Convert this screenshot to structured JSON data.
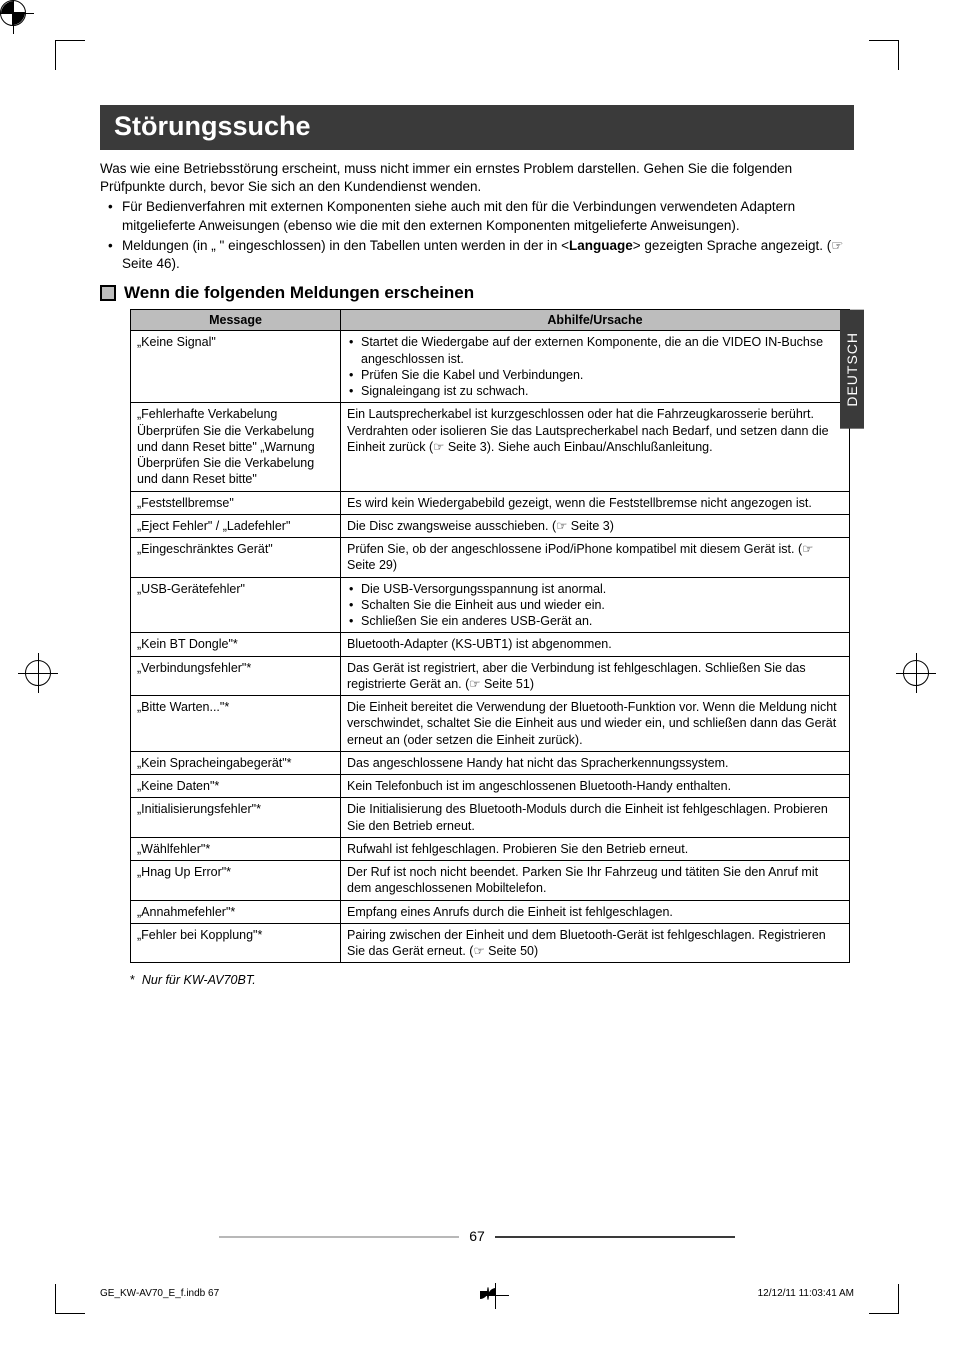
{
  "crop_marks": true,
  "title": "Störungssuche",
  "side_tab": "DEUTSCH",
  "intro_text": "Was wie eine Betriebsstörung erscheint, muss nicht immer ein ernstes Problem darstellen. Gehen Sie die folgenden Prüfpunkte durch, bevor Sie sich an den Kundendienst wenden.",
  "intro_bullets": [
    "Für Bedienverfahren mit externen Komponenten siehe auch mit den für die Verbindungen verwendeten Adaptern mitgelieferte Anweisungen (ebenso wie die mit den externen Komponenten mitgelieferte Anweisungen).",
    "Meldungen (in „ \" eingeschlossen) in den Tabellen unten werden in der in <Language> gezeigten Sprache angezeigt. (☞ Seite 46)."
  ],
  "section_heading": "Wenn die folgenden Meldungen erscheinen",
  "table": {
    "headers": [
      "Message",
      "Abhilfe/Ursache"
    ],
    "rows": [
      {
        "msg": "„Keine Signal\"",
        "remedy_list": [
          "Startet die Wiedergabe auf der externen Komponente, die an die VIDEO IN-Buchse angeschlossen ist.",
          "Prüfen Sie die Kabel und Verbindungen.",
          "Signaleingang ist zu schwach."
        ]
      },
      {
        "msg": "„Fehlerhafte Verkabelung Überprüfen Sie die Verkabelung und dann Reset bitte\" \n„Warnung Überprüfen Sie die Verkabelung und dann Reset bitte\"",
        "remedy": "Ein Lautsprecherkabel ist kurzgeschlossen oder hat die Fahrzeugkarosserie berührt. Verdrahten oder isolieren Sie das Lautsprecherkabel nach Bedarf, und setzen dann die Einheit zurück (☞ Seite 3). Siehe auch Einbau/Anschlußanleitung."
      },
      {
        "msg": "„Feststellbremse\"",
        "remedy": "Es wird kein Wiedergabebild gezeigt, wenn die Feststellbremse nicht angezogen ist."
      },
      {
        "msg": "„Eject Fehler\" / „Ladefehler\"",
        "remedy": "Die Disc zwangsweise ausschieben. (☞ Seite 3)"
      },
      {
        "msg": "„Eingeschränktes Gerät\"",
        "remedy": "Prüfen Sie, ob der angeschlossene  iPod/iPhone kompatibel mit diesem Gerät ist. (☞ Seite 29)"
      },
      {
        "msg": "„USB-Gerätefehler\"",
        "remedy_list": [
          "Die USB-Versorgungsspannung ist anormal.",
          "Schalten Sie die Einheit aus und wieder ein.",
          "Schließen Sie ein anderes USB-Gerät an."
        ]
      },
      {
        "msg": "„Kein BT Dongle\"*",
        "remedy": "Bluetooth-Adapter (KS-UBT1) ist abgenommen."
      },
      {
        "msg": "„Verbindungsfehler\"*",
        "remedy": "Das Gerät ist registriert, aber die Verbindung ist fehlgeschlagen. Schließen Sie das registrierte Gerät an. (☞ Seite 51)"
      },
      {
        "msg": "„Bitte Warten...\"*",
        "remedy": "Die Einheit bereitet die Verwendung der Bluetooth-Funktion vor. Wenn die Meldung nicht verschwindet, schaltet Sie die Einheit aus und wieder ein, und schließen dann das Gerät erneut an (oder setzen die Einheit zurück)."
      },
      {
        "msg": "„Kein Spracheingabegerät\"*",
        "remedy": "Das angeschlossene Handy hat nicht das Spracherkennungssystem."
      },
      {
        "msg": "„Keine Daten\"*",
        "remedy": "Kein Telefonbuch ist im angeschlossenen Bluetooth-Handy enthalten."
      },
      {
        "msg": "„Initialisierungsfehler\"*",
        "remedy": "Die Initialisierung des Bluetooth-Moduls durch die Einheit ist fehlgeschlagen. Probieren Sie den Betrieb erneut."
      },
      {
        "msg": "„Wählfehler\"*",
        "remedy": "Rufwahl ist fehlgeschlagen. Probieren Sie den Betrieb erneut."
      },
      {
        "msg": "„Hnag Up Error\"*",
        "remedy": "Der Ruf ist noch nicht beendet. Parken Sie Ihr Fahrzeug und tätiten Sie den Anruf mit dem angeschlossenen Mobiltelefon."
      },
      {
        "msg": "„Annahmefehler\"*",
        "remedy": "Empfang eines Anrufs durch die Einheit ist fehlgeschlagen."
      },
      {
        "msg": "„Fehler bei Kopplung\"*",
        "remedy": "Pairing zwischen der Einheit und dem Bluetooth-Gerät ist fehlgeschlagen. Registrieren Sie das Gerät erneut. (☞ Seite 50)"
      }
    ]
  },
  "footnote_marker": "*",
  "footnote_text": "Nur für KW-AV70BT.",
  "page_number": "67",
  "footer_left": "GE_KW-AV70_E_f.indb   67",
  "footer_right": "12/12/11   11:03:41 AM"
}
